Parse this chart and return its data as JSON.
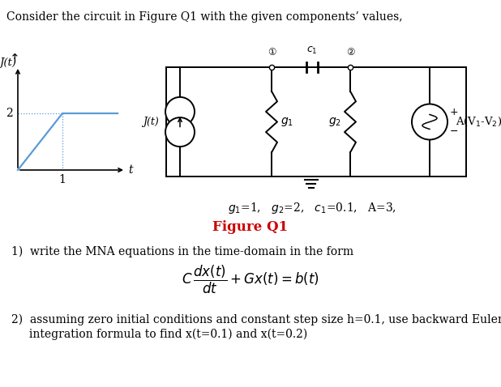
{
  "title_text": "Consider the circuit in Figure Q1 with the given components’ values,",
  "fig_label": "Figure Q1",
  "fig_label_color": "#cc0000",
  "q1_text": "1)  write the MNA equations in the time-domain in the form",
  "q2_line1": "2)  assuming zero initial conditions and constant step size h=0.1, use backward Euler",
  "q2_line2": "     integration formula to find x(t=0.1) and x(t=0.2)",
  "background_color": "#ffffff",
  "text_color": "#000000",
  "graph_line_color": "#5b9bd5",
  "graph_dot_color": "#5b9bd5",
  "circuit_lw": 1.4
}
